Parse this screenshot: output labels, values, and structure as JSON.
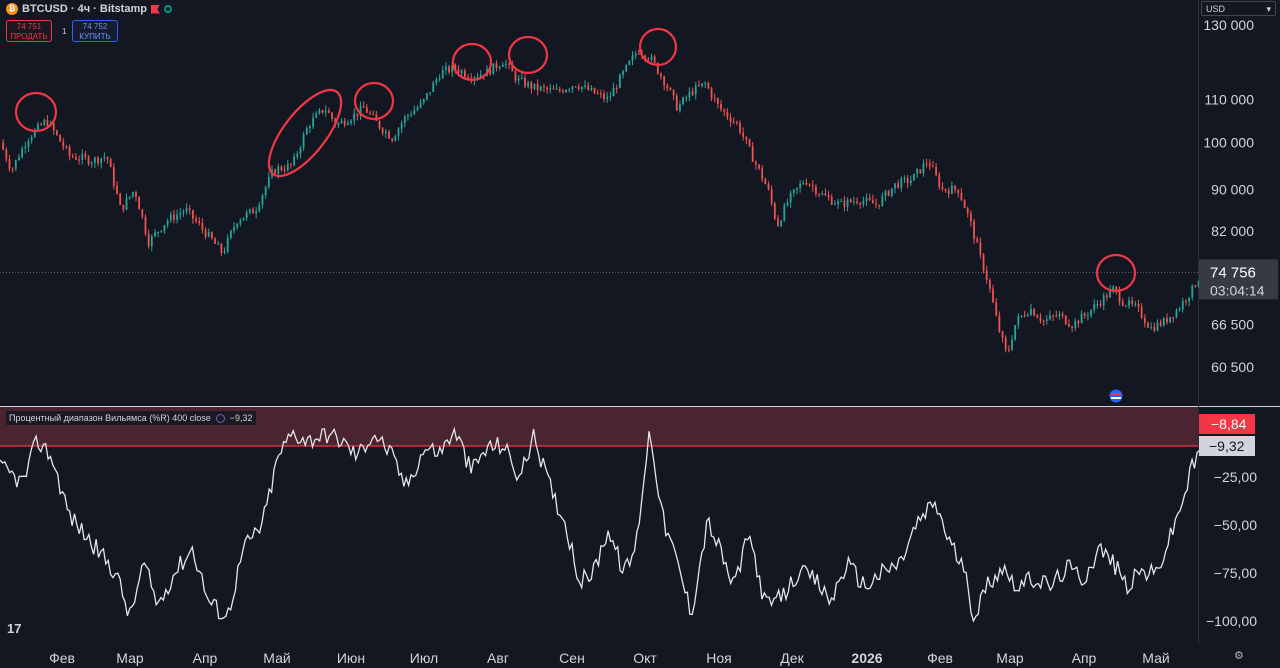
{
  "header": {
    "symbol": "BTCUSD · 4ч · Bitstamp",
    "sell_price": "74 751",
    "sell_label": "ПРОДАТЬ",
    "buy_price": "74 752",
    "buy_label": "КУПИТЬ",
    "quantity": "1",
    "currency": "USD"
  },
  "indicator": {
    "title": "Процентный диапазон Вильямса (%R) 400 close",
    "value": "−9,32"
  },
  "colors": {
    "background": "#131722",
    "up": "#26a69a",
    "down": "#ef5350",
    "annotation": "#f23645",
    "wr_line": "#e6e6e6",
    "overbought_fill": "#4a2430"
  },
  "chart_data": [
    {
      "type": "candlestick",
      "symbol": "BTCUSD",
      "yscale": "log",
      "y_ticks": [
        130000,
        110000,
        100000,
        90000,
        82000,
        66500,
        60500
      ],
      "y_tick_labels": [
        "130 000",
        "110 000",
        "100 000",
        "90 000",
        "82 000",
        "66 500",
        "60 500"
      ],
      "last_price": "74 756",
      "countdown": "03:04:14",
      "x_tick_labels": [
        "Фев",
        "Мар",
        "Апр",
        "Май",
        "Июн",
        "Июл",
        "Авг",
        "Сен",
        "Окт",
        "Ноя",
        "Дек",
        "2026",
        "Фев",
        "Мар",
        "Апр",
        "Май"
      ],
      "price_path": [
        [
          0,
          100000
        ],
        [
          0.5,
          94000
        ],
        [
          1.2,
          101000
        ],
        [
          2,
          105000
        ],
        [
          3,
          97000
        ],
        [
          4,
          96000
        ],
        [
          4.6,
          97000
        ],
        [
          5.2,
          86000
        ],
        [
          5.8,
          90000
        ],
        [
          6.4,
          80000
        ],
        [
          7.2,
          84000
        ],
        [
          8,
          86000
        ],
        [
          8.8,
          82000
        ],
        [
          9.6,
          78000
        ],
        [
          10.2,
          84000
        ],
        [
          11,
          86000
        ],
        [
          11.8,
          94000
        ],
        [
          12.6,
          95000
        ],
        [
          13.3,
          104000
        ],
        [
          14,
          108000
        ],
        [
          14.5,
          104000
        ],
        [
          15.2,
          106000
        ],
        [
          15.7,
          108000
        ],
        [
          16.3,
          104000
        ],
        [
          16.9,
          101000
        ],
        [
          17.5,
          106000
        ],
        [
          18.2,
          109000
        ],
        [
          19,
          117000
        ],
        [
          19.6,
          118000
        ],
        [
          20.3,
          116000
        ],
        [
          21,
          117000
        ],
        [
          21.7,
          120000
        ],
        [
          22.3,
          115000
        ],
        [
          23,
          113000
        ],
        [
          24,
          112000
        ],
        [
          24.8,
          114000
        ],
        [
          25.5,
          112000
        ],
        [
          26.2,
          110000
        ],
        [
          27,
          118000
        ],
        [
          27.5,
          123000
        ],
        [
          28,
          121000
        ],
        [
          28.7,
          114000
        ],
        [
          29.2,
          108000
        ],
        [
          29.8,
          112000
        ],
        [
          30.4,
          114000
        ],
        [
          31,
          108000
        ],
        [
          31.8,
          104000
        ],
        [
          32.5,
          96000
        ],
        [
          33.1,
          90000
        ],
        [
          33.5,
          83000
        ],
        [
          34,
          88000
        ],
        [
          34.7,
          92000
        ],
        [
          35.4,
          89000
        ],
        [
          36.2,
          87000
        ],
        [
          37,
          88000
        ],
        [
          37.8,
          87000
        ],
        [
          38.6,
          91000
        ],
        [
          39.3,
          92000
        ],
        [
          40,
          96000
        ],
        [
          40.6,
          90000
        ],
        [
          41.3,
          90000
        ],
        [
          41.8,
          84000
        ],
        [
          42.2,
          78000
        ],
        [
          42.6,
          73000
        ],
        [
          43,
          66500
        ],
        [
          43.4,
          62000
        ],
        [
          43.8,
          67000
        ],
        [
          44.4,
          69000
        ],
        [
          45,
          67000
        ],
        [
          45.6,
          68000
        ],
        [
          46.2,
          66500
        ],
        [
          46.8,
          68000
        ],
        [
          47.4,
          70000
        ],
        [
          48,
          72000
        ],
        [
          48.4,
          70000
        ],
        [
          49,
          69000
        ],
        [
          49.6,
          66000
        ],
        [
          50.2,
          67000
        ],
        [
          50.8,
          69000
        ],
        [
          51.4,
          72000
        ],
        [
          51.8,
          74756
        ]
      ],
      "annotations": [
        "circled local highs"
      ]
    },
    {
      "type": "line",
      "title": "Процентный диапазон Вильямса (%R) 400 close",
      "y_ticks": [
        -25,
        -50,
        -75,
        -100
      ],
      "y_tick_labels": [
        "−25,00",
        "−50,00",
        "−75,00",
        "−100,00"
      ],
      "level": "−8,84",
      "last_value": "−9,32",
      "series": [
        [
          0,
          -20
        ],
        [
          1,
          -28
        ],
        [
          1.6,
          -6
        ],
        [
          2.2,
          -14
        ],
        [
          3,
          -45
        ],
        [
          4,
          -60
        ],
        [
          5,
          -75
        ],
        [
          5.6,
          -98
        ],
        [
          6.2,
          -70
        ],
        [
          6.8,
          -92
        ],
        [
          7.5,
          -75
        ],
        [
          8.3,
          -62
        ],
        [
          9,
          -90
        ],
        [
          9.8,
          -98
        ],
        [
          10.5,
          -62
        ],
        [
          11.3,
          -50
        ],
        [
          12,
          -14
        ],
        [
          12.6,
          -2
        ],
        [
          13.3,
          -6
        ],
        [
          14,
          -2
        ],
        [
          14.7,
          -6
        ],
        [
          15.4,
          -14
        ],
        [
          16.1,
          -2
        ],
        [
          16.8,
          -12
        ],
        [
          17.5,
          -30
        ],
        [
          18.3,
          -10
        ],
        [
          19,
          -12
        ],
        [
          19.6,
          0
        ],
        [
          20.3,
          -22
        ],
        [
          21,
          -10
        ],
        [
          21.7,
          -8
        ],
        [
          22.4,
          -26
        ],
        [
          23,
          -3
        ],
        [
          23.7,
          -30
        ],
        [
          24.4,
          -50
        ],
        [
          25,
          -80
        ],
        [
          25.6,
          -74
        ],
        [
          26.2,
          -52
        ],
        [
          26.9,
          -75
        ],
        [
          27.4,
          -62
        ],
        [
          28,
          0
        ],
        [
          28.6,
          -48
        ],
        [
          29.2,
          -70
        ],
        [
          29.8,
          -96
        ],
        [
          30.5,
          -48
        ],
        [
          31,
          -62
        ],
        [
          31.6,
          -82
        ],
        [
          32.3,
          -55
        ],
        [
          33,
          -92
        ],
        [
          33.7,
          -88
        ],
        [
          34.4,
          -75
        ],
        [
          35.1,
          -78
        ],
        [
          35.8,
          -90
        ],
        [
          36.5,
          -70
        ],
        [
          37.3,
          -82
        ],
        [
          38,
          -75
        ],
        [
          38.8,
          -70
        ],
        [
          39.5,
          -50
        ],
        [
          40.3,
          -38
        ],
        [
          40.9,
          -58
        ],
        [
          41.5,
          -72
        ],
        [
          42,
          -98
        ],
        [
          42.6,
          -80
        ],
        [
          43.2,
          -72
        ],
        [
          43.9,
          -82
        ],
        [
          44.6,
          -78
        ],
        [
          45.3,
          -82
        ],
        [
          46,
          -72
        ],
        [
          46.7,
          -78
        ],
        [
          47.4,
          -62
        ],
        [
          48,
          -70
        ],
        [
          48.6,
          -82
        ],
        [
          49.2,
          -74
        ],
        [
          49.8,
          -76
        ],
        [
          50.4,
          -58
        ],
        [
          50.9,
          -40
        ],
        [
          51.4,
          -20
        ],
        [
          51.8,
          -9.32
        ]
      ]
    }
  ]
}
